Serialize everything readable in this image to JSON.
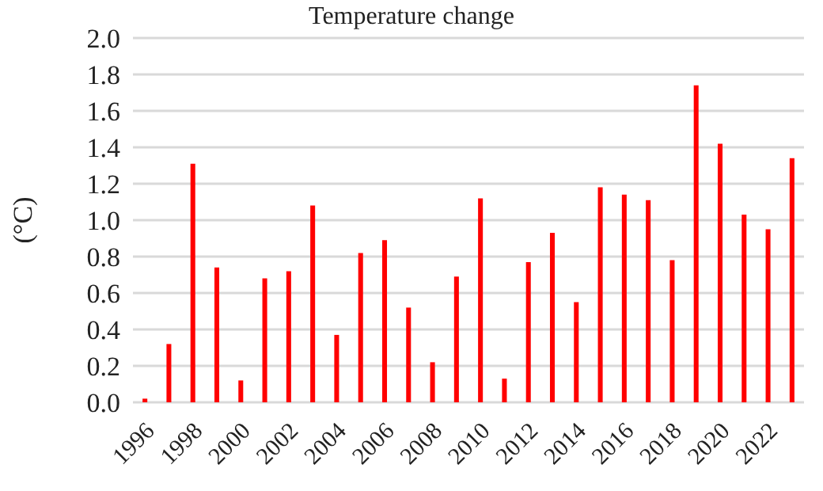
{
  "chart_data": {
    "type": "bar",
    "title": "Temperature change",
    "ylabel": "(°C)",
    "categories": [
      "1996",
      null,
      "1998",
      null,
      "2000",
      null,
      "2002",
      null,
      "2004",
      null,
      "2006",
      null,
      "2008",
      null,
      "2010",
      null,
      "2012",
      null,
      "2014",
      null,
      "2016",
      null,
      "2018",
      null,
      "2020",
      null,
      "2022",
      null
    ],
    "values": [
      0.02,
      0.32,
      1.31,
      0.74,
      0.12,
      0.68,
      0.72,
      1.08,
      0.37,
      0.82,
      0.89,
      0.52,
      0.22,
      0.69,
      1.12,
      0.13,
      0.77,
      0.93,
      0.55,
      1.18,
      1.14,
      1.11,
      0.78,
      1.74,
      1.42,
      1.03,
      0.95,
      1.34
    ],
    "color": "#ff0000",
    "ylim": [
      0,
      2
    ],
    "yticks": [
      {
        "value": 0,
        "label": "0.0"
      },
      {
        "value": 0.2,
        "label": "0.2"
      },
      {
        "value": 0.4,
        "label": "0.4"
      },
      {
        "value": 0.6,
        "label": "0.6"
      },
      {
        "value": 0.8,
        "label": "0.8"
      },
      {
        "value": 1,
        "label": "1.0"
      },
      {
        "value": 1.2,
        "label": "1.2"
      },
      {
        "value": 1.4,
        "label": "1.4"
      },
      {
        "value": 1.6,
        "label": "1.6"
      },
      {
        "value": 1.8,
        "label": "1.8"
      },
      {
        "value": 2,
        "label": "2.0"
      }
    ],
    "grid": "y"
  }
}
